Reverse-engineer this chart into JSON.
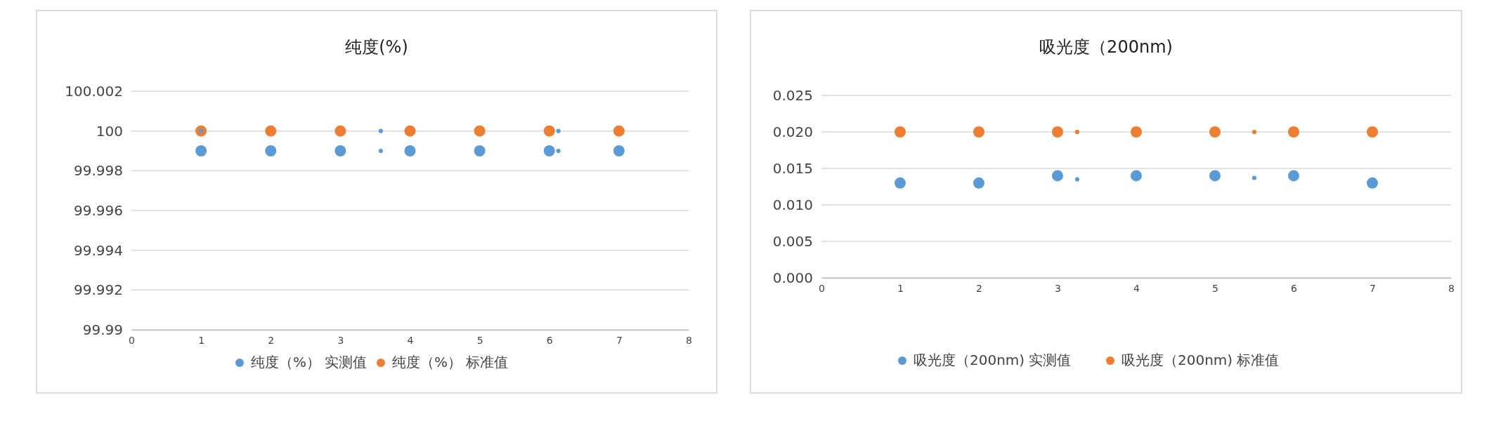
{
  "chart_data": [
    {
      "type": "bubble",
      "title": "纯度(%)",
      "xlim": [
        0,
        8
      ],
      "xticks": [
        0,
        1,
        2,
        3,
        4,
        5,
        6,
        7,
        8
      ],
      "ylim": [
        99.99,
        100.002
      ],
      "yticks": [
        99.99,
        99.992,
        99.994,
        99.996,
        99.998,
        100,
        100.002
      ],
      "grid": "y",
      "legend": "bottom",
      "series": [
        {
          "name": "纯度（%） 实测值",
          "color": "#5b9bd5",
          "x": [
            1,
            1,
            2,
            3,
            3.58,
            3.58,
            4,
            5,
            6,
            6.13,
            6.13,
            7
          ],
          "values": [
            99.999,
            100,
            99.999,
            99.999,
            100,
            99.999,
            99.999,
            99.999,
            99.999,
            100,
            99.999,
            99.999
          ],
          "sizes": [
            1,
            0.15,
            1,
            1,
            0.15,
            0.15,
            1,
            1,
            1,
            0.15,
            0.15,
            1
          ]
        },
        {
          "name": "纯度（%） 标准值",
          "color": "#ed7d31",
          "x": [
            1,
            2,
            3,
            4,
            5,
            6,
            7
          ],
          "values": [
            100,
            100,
            100,
            100,
            100,
            100,
            100
          ],
          "sizes": [
            1,
            1,
            1,
            1,
            1,
            1,
            1
          ]
        }
      ]
    },
    {
      "type": "bubble",
      "title": "吸光度（200nm)",
      "xlim": [
        0,
        8
      ],
      "xticks": [
        0,
        1,
        2,
        3,
        4,
        5,
        6,
        7,
        8
      ],
      "ylim": [
        0,
        0.025
      ],
      "yticks": [
        {
          "value": 0,
          "label": "0.000"
        },
        {
          "value": 0.005,
          "label": "0.005"
        },
        {
          "value": 0.01,
          "label": "0.010"
        },
        {
          "value": 0.015,
          "label": "0.015"
        },
        {
          "value": 0.02,
          "label": "0.020"
        },
        {
          "value": 0.025,
          "label": "0.025"
        }
      ],
      "grid": "y",
      "legend": "bottom",
      "series": [
        {
          "name": "吸光度（200nm) 实测值",
          "color": "#5b9bd5",
          "x": [
            1,
            2,
            3,
            3.25,
            4,
            5,
            5.5,
            6,
            7
          ],
          "values": [
            0.013,
            0.013,
            0.014,
            0.0135,
            0.014,
            0.014,
            0.0137,
            0.014,
            0.013
          ],
          "sizes": [
            1,
            1,
            1,
            0.15,
            1,
            1,
            0.15,
            1,
            1
          ]
        },
        {
          "name": "吸光度（200nm) 标准值",
          "color": "#ed7d31",
          "x": [
            1,
            2,
            3,
            3.25,
            4,
            5,
            5.5,
            6,
            7
          ],
          "values": [
            0.02,
            0.02,
            0.02,
            0.02,
            0.02,
            0.02,
            0.02,
            0.02,
            0.02
          ],
          "sizes": [
            1,
            1,
            1,
            0.15,
            1,
            1,
            0.15,
            1,
            1
          ]
        }
      ]
    }
  ]
}
